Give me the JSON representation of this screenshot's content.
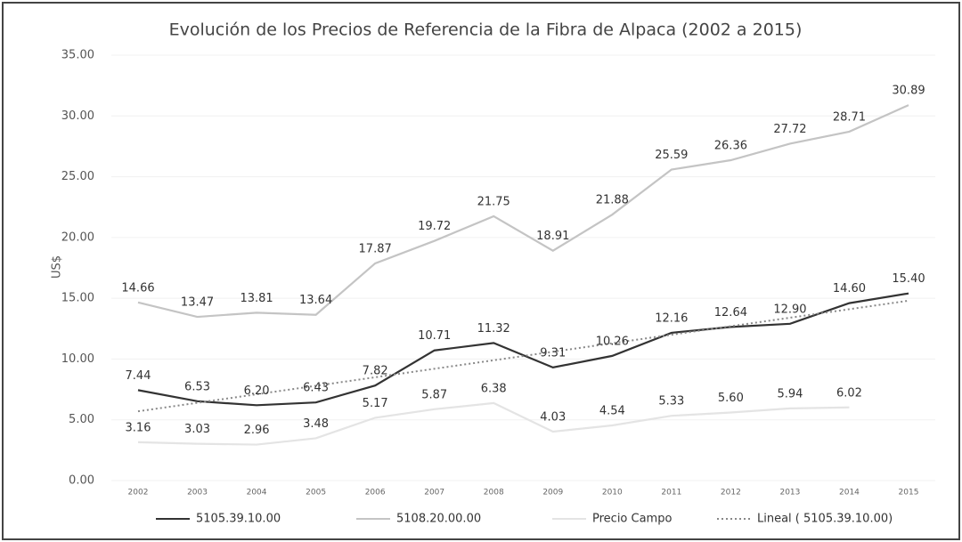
{
  "chart_data": {
    "type": "line",
    "title": "Evolución de los Precios de Referencia de la Fibra de Alpaca (2002 a 2015)",
    "y_label": "US$",
    "categories": [
      "2002",
      "2003",
      "2004",
      "2005",
      "2006",
      "2007",
      "2008",
      "2009",
      "2010",
      "2011",
      "2012",
      "2013",
      "2014",
      "2015"
    ],
    "ylim": [
      0,
      35
    ],
    "yticks": [
      {
        "value": 0,
        "label": "0.00"
      },
      {
        "value": 5,
        "label": "5.00"
      },
      {
        "value": 10,
        "label": "10.00"
      },
      {
        "value": 15,
        "label": "15.00"
      },
      {
        "value": 20,
        "label": "20.00"
      },
      {
        "value": 25,
        "label": "25.00"
      },
      {
        "value": 30,
        "label": "30.00"
      },
      {
        "value": 35,
        "label": "35.00"
      }
    ],
    "grid": true,
    "legend": "bottom",
    "series": [
      {
        "name": "5105.39.10.00",
        "color": "#333333",
        "style": "solid",
        "values": [
          7.44,
          6.53,
          6.2,
          6.43,
          7.82,
          10.71,
          11.32,
          9.31,
          10.26,
          12.16,
          12.64,
          12.9,
          14.6,
          15.4
        ],
        "value_labels": [
          "7.44",
          "6.53",
          "6.20",
          "6.43",
          "7.82",
          "10.71",
          "11.32",
          "9.31",
          "10.26",
          "12.16",
          "12.64",
          "12.90",
          "14.60",
          "15.40"
        ]
      },
      {
        "name": "5108.20.00.00",
        "color": "#c4c4c4",
        "style": "solid",
        "values": [
          14.66,
          13.47,
          13.81,
          13.64,
          17.87,
          19.72,
          21.75,
          18.91,
          21.88,
          25.59,
          26.36,
          27.72,
          28.71,
          30.89
        ],
        "value_labels": [
          "14.66",
          "13.47",
          "13.81",
          "13.64",
          "17.87",
          "19.72",
          "21.75",
          "18.91",
          "21.88",
          "25.59",
          "26.36",
          "27.72",
          "28.71",
          "30.89"
        ]
      },
      {
        "name": "Precio Campo",
        "color": "#e4e4e4",
        "style": "solid",
        "values": [
          3.16,
          3.03,
          2.96,
          3.48,
          5.17,
          5.87,
          6.38,
          4.03,
          4.54,
          5.33,
          5.6,
          5.94,
          6.02,
          null
        ],
        "value_labels": [
          "3.16",
          "3.03",
          "2.96",
          "3.48",
          "5.17",
          "5.87",
          "6.38",
          "4.03",
          "4.54",
          "5.33",
          "5.60",
          "5.94",
          "6.02",
          null
        ]
      },
      {
        "name": "Lineal ( 5105.39.10.00)",
        "color": "#888888",
        "style": "dotted",
        "values": [
          5.7,
          6.4,
          7.1,
          7.8,
          8.5,
          9.2,
          9.9,
          10.6,
          11.3,
          12.0,
          12.7,
          13.4,
          14.1,
          14.8
        ]
      }
    ]
  }
}
